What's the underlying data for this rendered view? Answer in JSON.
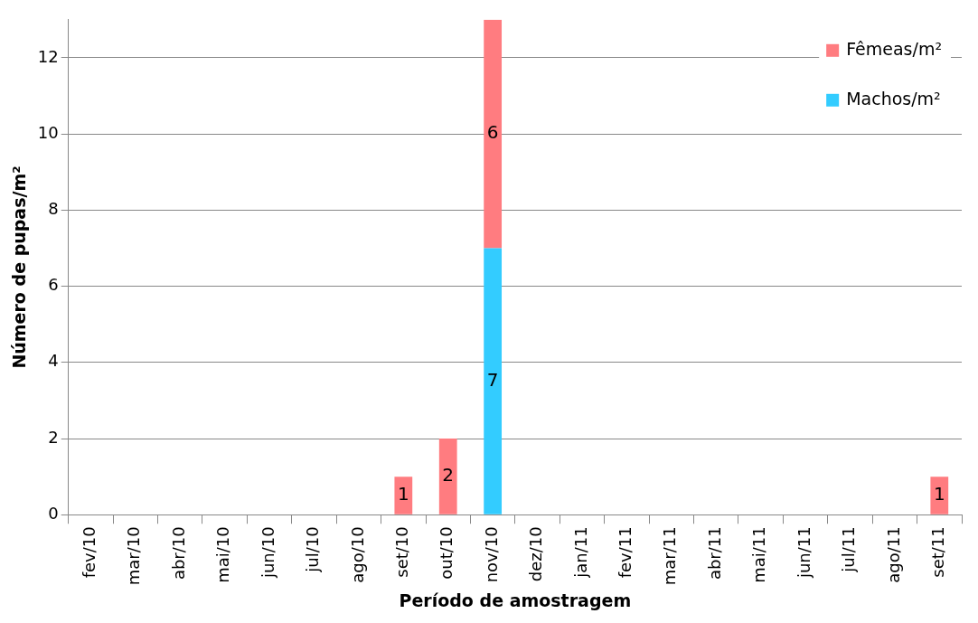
{
  "chart_data": {
    "type": "bar",
    "stacked": true,
    "xlabel": "Período de amostragem",
    "ylabel": "Número de pupas/m²",
    "categories": [
      "fev/10",
      "mar/10",
      "abr/10",
      "mai/10",
      "jun/10",
      "jul/10",
      "ago/10",
      "set/10",
      "out/10",
      "nov/10",
      "dez/10",
      "jan/11",
      "fev/11",
      "mar/11",
      "abr/11",
      "mai/11",
      "jun/11",
      "jul/11",
      "ago/11",
      "set/11"
    ],
    "series": [
      {
        "name": "Machos/m²",
        "color": "#33ccff",
        "values": [
          0,
          0,
          0,
          0,
          0,
          0,
          0,
          0,
          0,
          7,
          0,
          0,
          0,
          0,
          0,
          0,
          0,
          0,
          0,
          0
        ],
        "value_labels": [
          null,
          null,
          null,
          null,
          null,
          null,
          null,
          null,
          null,
          "7",
          null,
          null,
          null,
          null,
          null,
          null,
          null,
          null,
          null,
          null
        ]
      },
      {
        "name": "Fêmeas/m²",
        "color": "#ff7c80",
        "values": [
          0,
          0,
          0,
          0,
          0,
          0,
          0,
          1,
          2,
          6,
          0,
          0,
          0,
          0,
          0,
          0,
          0,
          0,
          0,
          1
        ],
        "value_labels": [
          null,
          null,
          null,
          null,
          null,
          null,
          null,
          "1",
          "2",
          "6",
          null,
          null,
          null,
          null,
          null,
          null,
          null,
          null,
          null,
          "1"
        ]
      }
    ],
    "ylim": [
      0,
      13
    ],
    "yticks": [
      0,
      2,
      4,
      6,
      8,
      10,
      12
    ],
    "grid": "y",
    "legend": "top right"
  }
}
